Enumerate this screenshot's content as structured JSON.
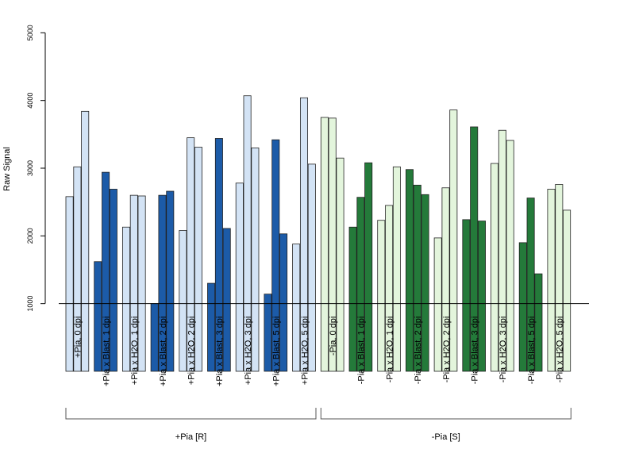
{
  "chart_data": {
    "type": "bar",
    "ylabel": "Raw Signal",
    "xlabel": "",
    "ylim": [
      0,
      5000
    ],
    "yticks": [
      1000,
      2000,
      3000,
      4000,
      5000
    ],
    "baseline": 1000,
    "grid": false,
    "colors": {
      "blue_light": "#d3e3f5",
      "blue_dark": "#1c5ba8",
      "green_light": "#e3f5dc",
      "green_dark": "#247a3a"
    },
    "groups": [
      {
        "label": "+Pia, 0 dpi",
        "tone": "blue_light",
        "values": [
          2580,
          3020,
          3840
        ]
      },
      {
        "label": "+Pia x Blast, 1 dpi",
        "tone": "blue_dark",
        "values": [
          1620,
          2940,
          2690
        ]
      },
      {
        "label": "+Pia x H2O, 1 dpi",
        "tone": "blue_light",
        "values": [
          2130,
          2600,
          2590
        ]
      },
      {
        "label": "+Pia x Blast, 2 dpi",
        "tone": "blue_dark",
        "values": [
          1000,
          2600,
          2660
        ]
      },
      {
        "label": "+Pia x H2O, 2 dpi",
        "tone": "blue_light",
        "values": [
          2080,
          3450,
          3310
        ]
      },
      {
        "label": "+Pia x Blast, 3 dpi",
        "tone": "blue_dark",
        "values": [
          1300,
          3440,
          2110
        ]
      },
      {
        "label": "+Pia x H2O, 3 dpi",
        "tone": "blue_light",
        "values": [
          2780,
          4070,
          3300
        ]
      },
      {
        "label": "+Pia x Blast, 5 dpi",
        "tone": "blue_dark",
        "values": [
          1140,
          3420,
          2030
        ]
      },
      {
        "label": "+Pia x H2O, 5 dpi",
        "tone": "blue_light",
        "values": [
          1880,
          4040,
          3060
        ]
      },
      {
        "label": "-Pia, 0 dpi",
        "tone": "green_light",
        "values": [
          3750,
          3740,
          3150
        ]
      },
      {
        "label": "-Pia x Blast, 1 dpi",
        "tone": "green_dark",
        "values": [
          2130,
          2570,
          3080
        ]
      },
      {
        "label": "-Pia x H2O, 1 dpi",
        "tone": "green_light",
        "values": [
          2230,
          2450,
          3020
        ]
      },
      {
        "label": "-Pia x Blast, 2 dpi",
        "tone": "green_dark",
        "values": [
          2980,
          2750,
          2610
        ]
      },
      {
        "label": "-Pia x H2O, 2 dpi",
        "tone": "green_light",
        "values": [
          1970,
          2710,
          3860
        ]
      },
      {
        "label": "-Pia x Blast, 3 dpi",
        "tone": "green_dark",
        "values": [
          2240,
          3610,
          2220
        ]
      },
      {
        "label": "-Pia x H2O, 3 dpi",
        "tone": "green_light",
        "values": [
          3070,
          3560,
          3410
        ]
      },
      {
        "label": "-Pia x Blast, 5 dpi",
        "tone": "green_dark",
        "values": [
          1900,
          2560,
          1440
        ]
      },
      {
        "label": "-Pia x H2O, 5 dpi",
        "tone": "green_light",
        "values": [
          2690,
          2760,
          2380
        ]
      }
    ],
    "supergroups": [
      {
        "label": "+Pia [R]",
        "from": 0,
        "to": 8
      },
      {
        "label": "-Pia [S]",
        "from": 9,
        "to": 17
      }
    ]
  }
}
